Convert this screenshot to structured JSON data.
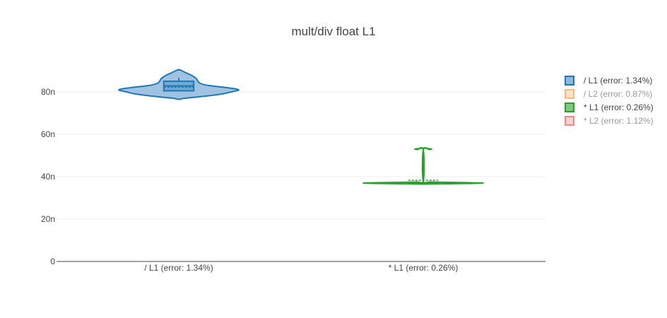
{
  "chart_data": {
    "type": "violin",
    "title": "mult/div float L1",
    "xlabel": "",
    "ylabel": "",
    "y_unit_suffix": "n",
    "ylim": [
      0,
      95
    ],
    "yticks": [
      0,
      20,
      40,
      60,
      80
    ],
    "ytick_labels": [
      "0",
      "20n",
      "40n",
      "60n",
      "80n"
    ],
    "grid": true,
    "legend_position": "top-right",
    "categories": [
      "/ L1 (error: 1.34%)",
      "* L1 (error: 0.26%)"
    ],
    "series": [
      {
        "name": "/ L1 (error: 1.34%)",
        "color": "#1f77b4",
        "fill": "#8fb8dc",
        "visible": true,
        "category_index": 0,
        "min": 76.5,
        "q1": 80.5,
        "median": 82.8,
        "mean": 82.2,
        "q3": 85.0,
        "max": 90.5,
        "whisker_high": 86.5,
        "whisker_low": 80.5,
        "density": [
          [
            76.5,
            0.02
          ],
          [
            77.0,
            0.1
          ],
          [
            78.0,
            0.45
          ],
          [
            79.0,
            0.72
          ],
          [
            80.0,
            0.88
          ],
          [
            81.0,
            1.0
          ],
          [
            82.0,
            0.8
          ],
          [
            83.0,
            0.5
          ],
          [
            84.0,
            0.36
          ],
          [
            85.0,
            0.32
          ],
          [
            86.0,
            0.3
          ],
          [
            87.0,
            0.26
          ],
          [
            88.0,
            0.2
          ],
          [
            89.0,
            0.12
          ],
          [
            90.0,
            0.05
          ],
          [
            90.5,
            0.0
          ]
        ]
      },
      {
        "name": "/ L2 (error: 0.87%)",
        "color": "#ff7f0e",
        "fill": "#ffd1a8",
        "visible": false
      },
      {
        "name": "* L1 (error: 0.26%)",
        "color": "#2ca02c",
        "fill": "#7fc97f",
        "visible": true,
        "category_index": 1,
        "min": 36.5,
        "q1": 36.9,
        "median": 37.0,
        "mean": 38.3,
        "q3": 37.2,
        "max": 53.0,
        "whisker_high": 53.0,
        "whisker_low": 36.9,
        "density": [
          [
            36.5,
            0.05
          ],
          [
            36.8,
            0.75
          ],
          [
            37.0,
            1.0
          ],
          [
            37.2,
            0.7
          ],
          [
            37.5,
            0.12
          ],
          [
            38.0,
            0.0
          ],
          [
            52.5,
            0.0
          ],
          [
            52.8,
            0.1
          ],
          [
            53.0,
            0.14
          ],
          [
            53.2,
            0.1
          ],
          [
            53.5,
            0.0
          ]
        ]
      },
      {
        "name": "* L2 (error: 1.12%)",
        "color": "#d62728",
        "fill": "#f4b6b6",
        "visible": false
      }
    ]
  }
}
